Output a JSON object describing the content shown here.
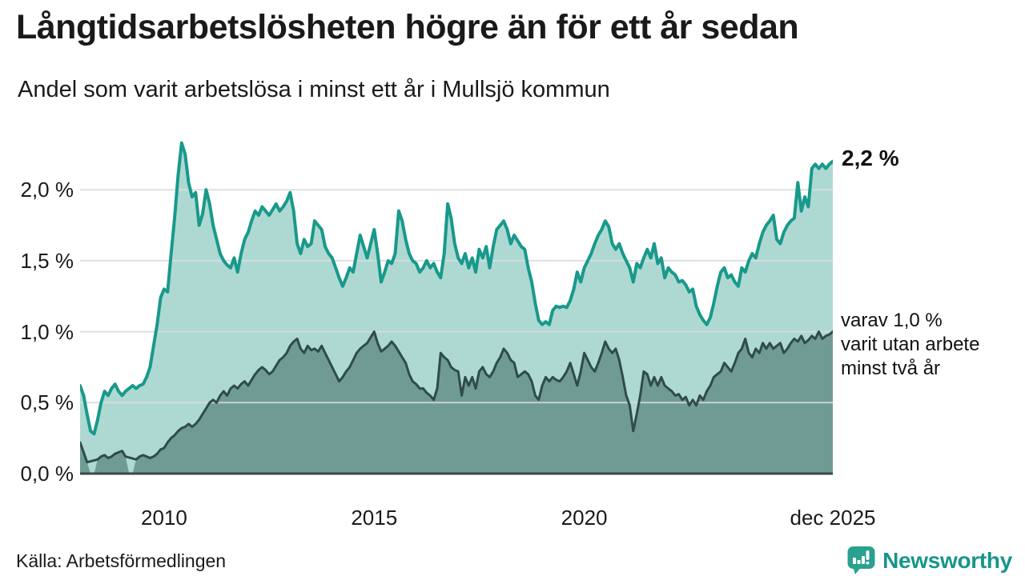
{
  "header": {
    "title": "Långtidsarbetslösheten högre än för ett år sedan",
    "subtitle": "Andel som varit arbetslösa i minst ett år i Mullsjö kommun"
  },
  "annotations": {
    "end_label": "2,2 %",
    "secondary_line1": "varav 1,0 %",
    "secondary_line2": "varit utan arbete",
    "secondary_line3": "minst två år"
  },
  "footer": {
    "source": "Källa: Arbetsförmedlingen",
    "brand": "Newsworthy",
    "brand_icon": "newsworthy-speech-bubble-bar-chart-icon"
  },
  "colors": {
    "primary_line": "#18998b",
    "primary_fill": "#aed9d2",
    "secondary_line": "#2f4c47",
    "secondary_fill": "#6f9b94",
    "gridline": "#d7dcdf",
    "baseline": "#3b4a47",
    "text": "#1a1a1a",
    "brand_teal": "#17968a"
  },
  "chart_data": {
    "type": "area",
    "title": "Långtidsarbetslösheten högre än för ett år sedan",
    "subtitle": "Andel som varit arbetslösa i minst ett år i Mullsjö kommun",
    "unit": "%",
    "frequency": "monthly",
    "x_start": "2008-01",
    "x_end": "2025-12",
    "ylim": [
      0,
      2.45
    ],
    "grid": "horizontal",
    "legend_position": "annotations-right",
    "y_ticks": [
      {
        "label": "0,0 %",
        "value": 0.0
      },
      {
        "label": "0,5 %",
        "value": 0.5
      },
      {
        "label": "1,0 %",
        "value": 1.0
      },
      {
        "label": "1,5 %",
        "value": 1.5
      },
      {
        "label": "2,0 %",
        "value": 2.0
      }
    ],
    "x_ticks": [
      {
        "label": "2010",
        "month_index": 24
      },
      {
        "label": "2015",
        "month_index": 84
      },
      {
        "label": "2020",
        "month_index": 144
      },
      {
        "label": "dec 2025",
        "month_index": 215
      }
    ],
    "series": [
      {
        "name": "Andel arbetslösa minst ett år",
        "end_value": 2.2,
        "line_color": "#18998b",
        "fill_color": "#aed9d2",
        "values": [
          0.62,
          0.55,
          0.42,
          0.3,
          0.28,
          0.38,
          0.5,
          0.58,
          0.55,
          0.6,
          0.63,
          0.58,
          0.55,
          0.58,
          0.6,
          0.62,
          0.6,
          0.62,
          0.63,
          0.68,
          0.75,
          0.9,
          1.05,
          1.24,
          1.3,
          1.28,
          1.55,
          1.8,
          2.1,
          2.33,
          2.25,
          2.05,
          1.95,
          1.98,
          1.75,
          1.83,
          2.0,
          1.9,
          1.75,
          1.65,
          1.55,
          1.5,
          1.47,
          1.45,
          1.52,
          1.42,
          1.55,
          1.65,
          1.7,
          1.78,
          1.85,
          1.82,
          1.88,
          1.85,
          1.82,
          1.86,
          1.9,
          1.85,
          1.88,
          1.92,
          1.98,
          1.85,
          1.62,
          1.55,
          1.65,
          1.6,
          1.62,
          1.78,
          1.75,
          1.72,
          1.6,
          1.55,
          1.52,
          1.45,
          1.38,
          1.32,
          1.38,
          1.45,
          1.42,
          1.55,
          1.68,
          1.6,
          1.52,
          1.62,
          1.72,
          1.55,
          1.35,
          1.42,
          1.5,
          1.48,
          1.55,
          1.85,
          1.78,
          1.65,
          1.55,
          1.5,
          1.48,
          1.42,
          1.45,
          1.5,
          1.45,
          1.48,
          1.42,
          1.38,
          1.55,
          1.9,
          1.8,
          1.62,
          1.52,
          1.48,
          1.55,
          1.45,
          1.52,
          1.42,
          1.58,
          1.52,
          1.6,
          1.45,
          1.6,
          1.72,
          1.75,
          1.78,
          1.72,
          1.62,
          1.68,
          1.64,
          1.6,
          1.58,
          1.45,
          1.35,
          1.2,
          1.08,
          1.05,
          1.07,
          1.05,
          1.15,
          1.18,
          1.17,
          1.18,
          1.17,
          1.22,
          1.3,
          1.42,
          1.35,
          1.45,
          1.5,
          1.55,
          1.62,
          1.68,
          1.72,
          1.78,
          1.74,
          1.62,
          1.58,
          1.62,
          1.55,
          1.5,
          1.45,
          1.35,
          1.48,
          1.45,
          1.52,
          1.58,
          1.52,
          1.62,
          1.48,
          1.52,
          1.38,
          1.45,
          1.42,
          1.4,
          1.35,
          1.36,
          1.33,
          1.28,
          1.3,
          1.18,
          1.12,
          1.08,
          1.05,
          1.1,
          1.2,
          1.32,
          1.42,
          1.45,
          1.38,
          1.4,
          1.35,
          1.32,
          1.45,
          1.42,
          1.5,
          1.55,
          1.52,
          1.62,
          1.7,
          1.75,
          1.78,
          1.82,
          1.65,
          1.62,
          1.7,
          1.75,
          1.78,
          1.8,
          2.05,
          1.85,
          1.95,
          1.88,
          2.15,
          2.18,
          2.15,
          2.18,
          2.15,
          2.18,
          2.2
        ]
      },
      {
        "name": "varav utan arbete minst två år",
        "end_value": 1.0,
        "line_color": "#2f4c47",
        "fill_color": "#6f9b94",
        "values": [
          0.22,
          0.15,
          0.08,
          0.0,
          0.0,
          0.1,
          0.12,
          0.13,
          0.11,
          0.12,
          0.14,
          0.15,
          0.16,
          0.12,
          0.0,
          0.0,
          0.1,
          0.12,
          0.13,
          0.12,
          0.11,
          0.12,
          0.14,
          0.17,
          0.18,
          0.22,
          0.25,
          0.27,
          0.3,
          0.32,
          0.33,
          0.35,
          0.33,
          0.35,
          0.38,
          0.42,
          0.46,
          0.5,
          0.52,
          0.5,
          0.55,
          0.58,
          0.55,
          0.6,
          0.62,
          0.6,
          0.63,
          0.65,
          0.62,
          0.66,
          0.7,
          0.73,
          0.75,
          0.73,
          0.7,
          0.72,
          0.76,
          0.8,
          0.82,
          0.85,
          0.9,
          0.93,
          0.95,
          0.88,
          0.85,
          0.9,
          0.87,
          0.88,
          0.86,
          0.9,
          0.85,
          0.8,
          0.75,
          0.7,
          0.65,
          0.68,
          0.72,
          0.75,
          0.8,
          0.85,
          0.88,
          0.9,
          0.92,
          0.96,
          1.0,
          0.92,
          0.86,
          0.88,
          0.9,
          0.93,
          0.9,
          0.86,
          0.82,
          0.78,
          0.7,
          0.65,
          0.63,
          0.6,
          0.6,
          0.57,
          0.55,
          0.52,
          0.6,
          0.85,
          0.82,
          0.8,
          0.75,
          0.73,
          0.72,
          0.55,
          0.68,
          0.62,
          0.68,
          0.6,
          0.72,
          0.75,
          0.7,
          0.68,
          0.72,
          0.78,
          0.82,
          0.88,
          0.85,
          0.8,
          0.78,
          0.68,
          0.7,
          0.72,
          0.7,
          0.65,
          0.55,
          0.52,
          0.62,
          0.68,
          0.65,
          0.68,
          0.66,
          0.65,
          0.68,
          0.72,
          0.78,
          0.7,
          0.62,
          0.72,
          0.85,
          0.8,
          0.75,
          0.72,
          0.78,
          0.85,
          0.93,
          0.88,
          0.85,
          0.88,
          0.8,
          0.68,
          0.55,
          0.48,
          0.3,
          0.42,
          0.55,
          0.72,
          0.7,
          0.62,
          0.68,
          0.62,
          0.68,
          0.62,
          0.6,
          0.58,
          0.55,
          0.56,
          0.52,
          0.54,
          0.48,
          0.52,
          0.48,
          0.55,
          0.52,
          0.58,
          0.62,
          0.68,
          0.7,
          0.72,
          0.78,
          0.75,
          0.72,
          0.78,
          0.85,
          0.88,
          0.95,
          0.85,
          0.82,
          0.88,
          0.85,
          0.92,
          0.88,
          0.92,
          0.88,
          0.9,
          0.92,
          0.85,
          0.88,
          0.92,
          0.95,
          0.93,
          0.97,
          0.92,
          0.94,
          0.97,
          0.95,
          1.0,
          0.95,
          0.97,
          0.98,
          1.0
        ]
      }
    ]
  }
}
